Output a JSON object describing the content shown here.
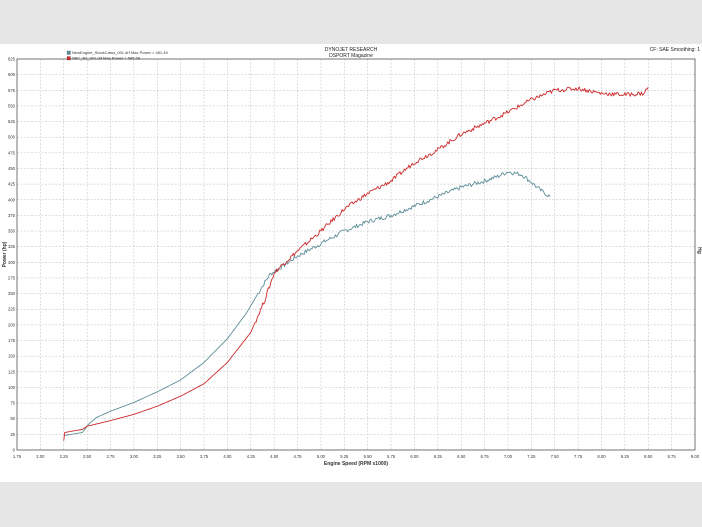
{
  "header": {
    "center_line1": "DYNOJET RESEARCH",
    "center_line2": "DSPORT Magazine",
    "right": "CF: SAE  Smoothing: 1"
  },
  "chart_data": {
    "type": "line",
    "xlabel": "Engine Speed (RPM x1000)",
    "ylabel": "Power (hp)",
    "right_axis_label": "Hg",
    "xlim": [
      1.75,
      9.0
    ],
    "ylim": [
      0,
      625
    ],
    "x_ticks": [
      "1.75",
      "2.00",
      "2.25",
      "2.50",
      "2.75",
      "3.00",
      "3.25",
      "3.50",
      "3.75",
      "4.00",
      "4.25",
      "4.50",
      "4.75",
      "5.00",
      "5.25",
      "5.50",
      "5.75",
      "6.00",
      "6.25",
      "6.50",
      "6.75",
      "7.00",
      "7.25",
      "7.50",
      "7.75",
      "8.00",
      "8.25",
      "8.50",
      "8.75",
      "9.00"
    ],
    "y_ticks": [
      "0",
      "25",
      "50",
      "75",
      "100",
      "125",
      "150",
      "175",
      "200",
      "225",
      "250",
      "275",
      "300",
      "325",
      "350",
      "375",
      "400",
      "425",
      "450",
      "475",
      "500",
      "525",
      "550",
      "575",
      "600",
      "625"
    ],
    "grid": true,
    "legend_position": "top-left",
    "series": [
      {
        "name": "NewEngine_StockCams_001.drf Max Power = 451.49",
        "color": "#5f8f9a",
        "points": [
          [
            2.25,
            23
          ],
          [
            2.45,
            28
          ],
          [
            2.52,
            42
          ],
          [
            2.6,
            52
          ],
          [
            2.75,
            62
          ],
          [
            3.0,
            76
          ],
          [
            3.25,
            93
          ],
          [
            3.5,
            112
          ],
          [
            3.75,
            140
          ],
          [
            4.0,
            178
          ],
          [
            4.2,
            218
          ],
          [
            4.35,
            256
          ],
          [
            4.45,
            280
          ],
          [
            4.55,
            290
          ],
          [
            4.75,
            310
          ],
          [
            5.0,
            330
          ],
          [
            5.25,
            350
          ],
          [
            5.5,
            365
          ],
          [
            5.75,
            375
          ],
          [
            6.0,
            390
          ],
          [
            6.25,
            405
          ],
          [
            6.5,
            420
          ],
          [
            6.75,
            430
          ],
          [
            6.9,
            438
          ],
          [
            7.0,
            445
          ],
          [
            7.15,
            440
          ],
          [
            7.25,
            428
          ],
          [
            7.35,
            415
          ],
          [
            7.45,
            405
          ]
        ]
      },
      {
        "name": "SBC_B2_001.drf Max Power = 585.58",
        "color": "#cc2a2a",
        "points": [
          [
            2.25,
            15
          ],
          [
            2.26,
            28
          ],
          [
            2.45,
            33
          ],
          [
            2.5,
            38
          ],
          [
            2.75,
            47
          ],
          [
            3.0,
            57
          ],
          [
            3.25,
            70
          ],
          [
            3.5,
            86
          ],
          [
            3.75,
            106
          ],
          [
            4.0,
            140
          ],
          [
            4.25,
            188
          ],
          [
            4.4,
            240
          ],
          [
            4.5,
            283
          ],
          [
            4.6,
            298
          ],
          [
            4.75,
            318
          ],
          [
            5.0,
            350
          ],
          [
            5.25,
            385
          ],
          [
            5.5,
            410
          ],
          [
            5.75,
            430
          ],
          [
            6.0,
            460
          ],
          [
            6.25,
            480
          ],
          [
            6.5,
            505
          ],
          [
            6.75,
            522
          ],
          [
            7.0,
            540
          ],
          [
            7.25,
            560
          ],
          [
            7.5,
            575
          ],
          [
            7.75,
            578
          ],
          [
            8.0,
            570
          ],
          [
            8.25,
            568
          ],
          [
            8.45,
            570
          ],
          [
            8.5,
            580
          ]
        ]
      }
    ]
  }
}
